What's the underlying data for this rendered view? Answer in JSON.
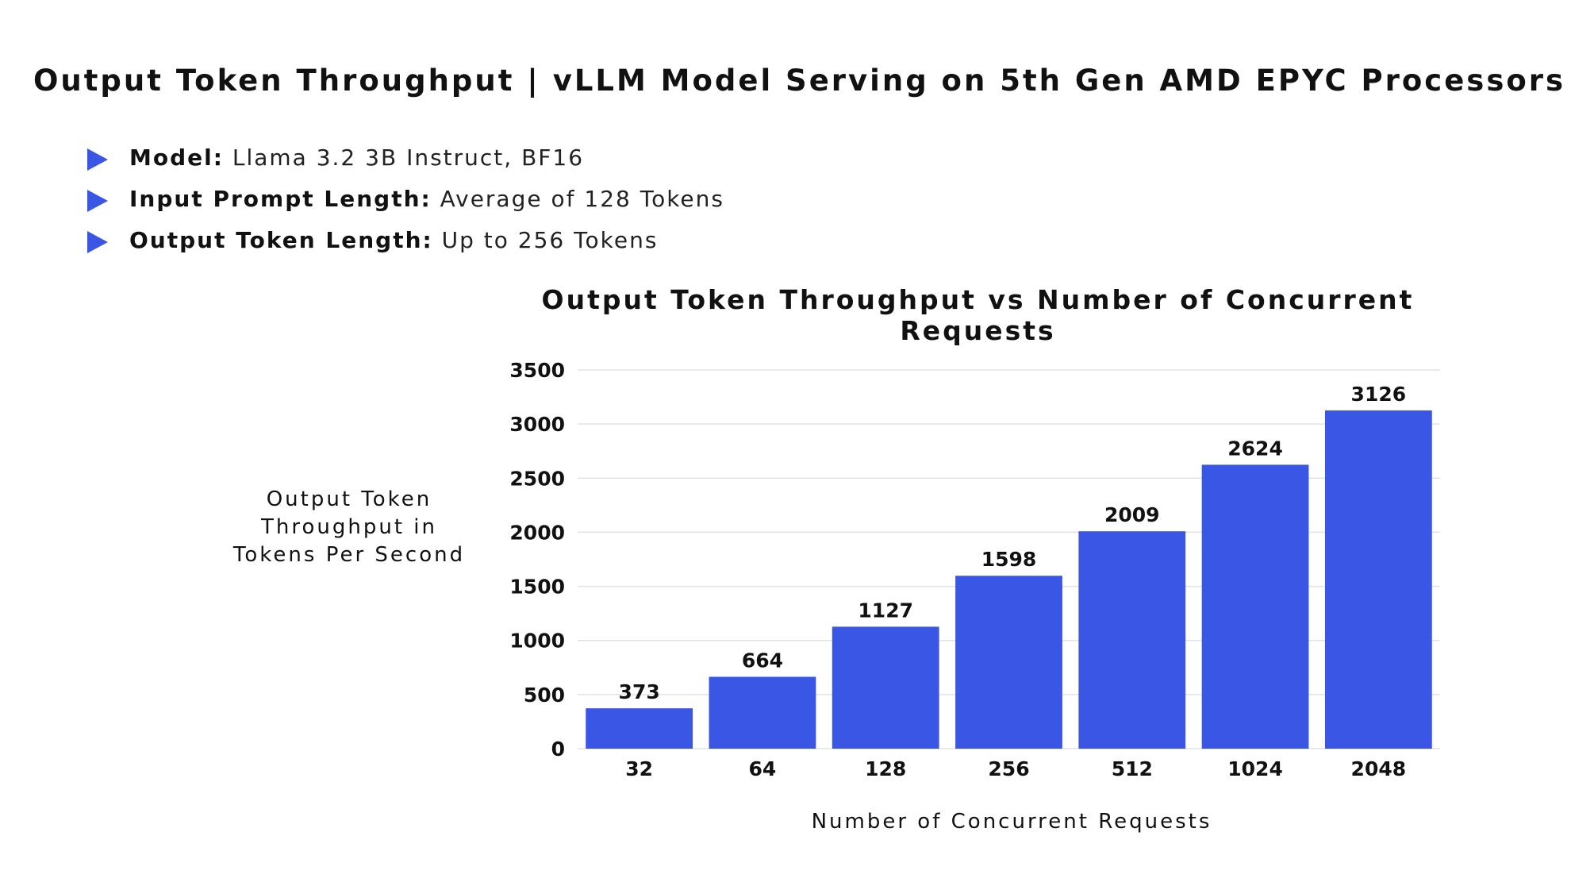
{
  "title": "Output Token Throughput | vLLM Model Serving on 5th Gen AMD EPYC Processors",
  "details": [
    {
      "label": "Model:",
      "value": "Llama 3.2 3B Instruct, BF16"
    },
    {
      "label": "Input Prompt Length:",
      "value": "Average of 128 Tokens"
    },
    {
      "label": "Output Token Length:",
      "value": "Up to 256 Tokens"
    }
  ],
  "colors": {
    "bar": "#3a56e4",
    "bullet": "#3a56e4",
    "grid": "#e2e2e2"
  },
  "chart_data": {
    "type": "bar",
    "title": "Output Token Throughput vs Number of Concurrent Requests",
    "xlabel": "Number of Concurrent Requests",
    "ylabel": "Output Token Throughput in Tokens Per Second",
    "categories": [
      "32",
      "64",
      "128",
      "256",
      "512",
      "1024",
      "2048"
    ],
    "values": [
      373,
      664,
      1127,
      1598,
      2009,
      2624,
      3126
    ],
    "data_labels": [
      "373",
      "664",
      "1127",
      "1598",
      "2009",
      "2624",
      "3126"
    ],
    "ylim": [
      0,
      3500
    ],
    "yticks": [
      0,
      500,
      1000,
      1500,
      2000,
      2500,
      3000,
      3500
    ],
    "grid": true,
    "legend": "none"
  }
}
